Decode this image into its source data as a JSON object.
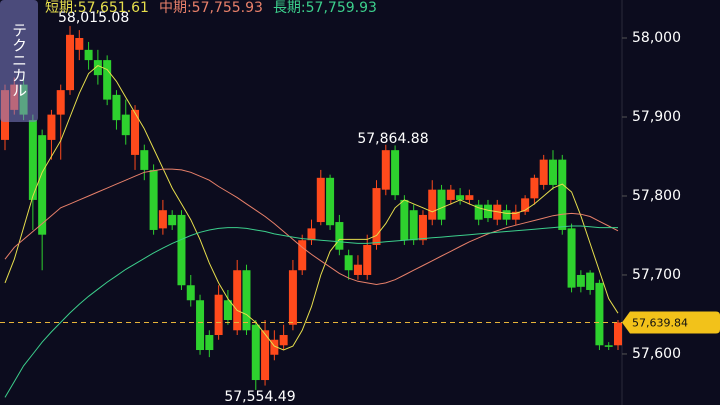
{
  "technical_button": "テクニカル",
  "chart_data": {
    "type": "candlestick",
    "up_color": "#ff4a1c",
    "down_color": "#2ed12e",
    "candles": {
      "open": [
        57871,
        57909,
        57941,
        57896,
        57877,
        57871,
        57903,
        57934,
        57985,
        57985,
        57972,
        57972,
        57928,
        57903,
        57852,
        57858,
        57833,
        57759,
        57776,
        57776,
        57687,
        57668,
        57624,
        57624,
        57668,
        57630,
        57706,
        57637,
        57567,
        57599,
        57611,
        57637,
        57706,
        57744,
        57767,
        57823,
        57767,
        57725,
        57700,
        57700,
        57738,
        57808,
        57858,
        57795,
        57782,
        57744,
        57770,
        57808,
        57795,
        57801,
        57795,
        57789,
        57789,
        57770,
        57782,
        57770,
        57780,
        57797,
        57814,
        57846,
        57846,
        57759,
        57700,
        57703,
        57690,
        57611,
        57611
      ],
      "high": [
        57941,
        57950,
        57953,
        57903,
        57884,
        57909,
        57941,
        58015.08,
        58010,
        57995,
        57985,
        57978,
        57934,
        57922,
        57915,
        57865,
        57840,
        57795,
        57782,
        57782,
        57700,
        57675,
        57630,
        57687,
        57681,
        57719,
        57713,
        57643,
        57643,
        57630,
        57637,
        57719,
        57751,
        57770,
        57833,
        57827,
        57776,
        57732,
        57725,
        57751,
        57820,
        57864.88,
        57864,
        57801,
        57789,
        57782,
        57820,
        57814,
        57814,
        57810,
        57808,
        57795,
        57795,
        57795,
        57789,
        57789,
        57801,
        57827,
        57852,
        57858,
        57852,
        57765,
        57706,
        57706,
        57694,
        57615,
        57643
      ],
      "low": [
        57858,
        57903,
        57896,
        57757,
        57706,
        57846,
        57846,
        57928,
        57972,
        57960,
        57941,
        57915,
        57884,
        57865,
        57833,
        57820,
        57751,
        57751,
        57757,
        57681,
        57660,
        57599,
        57596,
        57618,
        57637,
        57624,
        57624,
        57554.49,
        57560,
        57592,
        57605,
        57630,
        57700,
        57738,
        57763,
        57757,
        57725,
        57694,
        57694,
        57694,
        57732,
        57801,
        57795,
        57738,
        57738,
        57738,
        57763,
        57763,
        57789,
        57789,
        57789,
        57763,
        57767,
        57763,
        57763,
        57763,
        57776,
        57789,
        57808,
        57808,
        57751,
        57678,
        57678,
        57675,
        57605,
        57605,
        57605
      ],
      "close": [
        57934,
        57941,
        57903,
        57795,
        57751,
        57903,
        57934,
        58004,
        58000,
        57972,
        57953,
        57922,
        57896,
        57877,
        57909,
        57833,
        57757,
        57782,
        57763,
        57687,
        57668,
        57605,
        57605,
        57675,
        57643,
        57706,
        57630,
        57567,
        57630,
        57618,
        57624,
        57706,
        57744,
        57759,
        57823,
        57763,
        57732,
        57706,
        57713,
        57738,
        57810,
        57858,
        57801,
        57744,
        57744,
        57776,
        57808,
        57770,
        57808,
        57795,
        57801,
        57770,
        57772,
        57789,
        57770,
        57780,
        57797,
        57823,
        57846,
        57814,
        57757,
        57684,
        57685,
        57681,
        57611,
        57609,
        57639.84
      ]
    },
    "series": [
      {
        "name": "短期:57,651.61",
        "color": "#e6de4c",
        "values": [
          57690,
          57720,
          57760,
          57800,
          57830,
          57850,
          57870,
          57900,
          57930,
          57955,
          57965,
          57960,
          57945,
          57925,
          57905,
          57885,
          57860,
          57835,
          57810,
          57790,
          57770,
          57745,
          57715,
          57690,
          57670,
          57655,
          57650,
          57640,
          57625,
          57610,
          57605,
          57610,
          57630,
          57660,
          57700,
          57730,
          57745,
          57745,
          57745,
          57745,
          57750,
          57765,
          57785,
          57795,
          57790,
          57785,
          57780,
          57785,
          57790,
          57795,
          57790,
          57785,
          57782,
          57780,
          57778,
          57778,
          57782,
          57790,
          57800,
          57810,
          57815,
          57805,
          57775,
          57740,
          57705,
          57670,
          57651.61
        ]
      },
      {
        "name": "中期:57,755.93",
        "color": "#e8806a",
        "values": [
          57720,
          57735,
          57745,
          57755,
          57765,
          57775,
          57785,
          57790,
          57795,
          57800,
          57805,
          57810,
          57815,
          57820,
          57825,
          57830,
          57832,
          57834,
          57834,
          57833,
          57830,
          57825,
          57820,
          57812,
          57805,
          57798,
          57790,
          57782,
          57774,
          57765,
          57755,
          57745,
          57735,
          57726,
          57718,
          57710,
          57702,
          57696,
          57692,
          57690,
          57688,
          57690,
          57694,
          57700,
          57706,
          57712,
          57718,
          57724,
          57730,
          57736,
          57742,
          57747,
          57752,
          57756,
          57760,
          57763,
          57766,
          57769,
          57772,
          57775,
          57777,
          57778,
          57777,
          57774,
          57768,
          57762,
          57755.93
        ]
      },
      {
        "name": "長期:57,759.93",
        "color": "#3ccf8c",
        "values": [
          57545,
          57565,
          57585,
          57600,
          57615,
          57628,
          57640,
          57652,
          57663,
          57673,
          57682,
          57691,
          57699,
          57707,
          57714,
          57721,
          57728,
          57734,
          57740,
          57745,
          57750,
          57754,
          57757,
          57759,
          57760,
          57760,
          57759,
          57757,
          57755,
          57752,
          57750,
          57748,
          57746,
          57745,
          57744,
          57743,
          57742,
          57741,
          57740,
          57740,
          57741,
          57742,
          57743,
          57744,
          57745,
          57746,
          57747,
          57748,
          57749,
          57750,
          57751,
          57752,
          57753,
          57754,
          57755,
          57756,
          57757,
          57758,
          57759,
          57760,
          57761,
          57762,
          57762,
          57761,
          57760,
          57760,
          57759.93
        ]
      }
    ],
    "annotations": [
      {
        "value": 58015.08,
        "label": "58,015.08"
      },
      {
        "value": 57864.88,
        "label": "57,864.88"
      },
      {
        "value": 57554.49,
        "label": "57,554.49"
      }
    ],
    "current_price": {
      "value": 57639.84,
      "label": "57,639.84"
    },
    "ylim": [
      57535.4,
      58048.1
    ],
    "yticks": [
      {
        "value": 58000,
        "label": "58,000"
      },
      {
        "value": 57900,
        "label": "57,900"
      },
      {
        "value": 57800,
        "label": "57,800"
      },
      {
        "value": 57700,
        "label": "57,700"
      },
      {
        "value": 57600,
        "label": "57,600"
      }
    ]
  }
}
